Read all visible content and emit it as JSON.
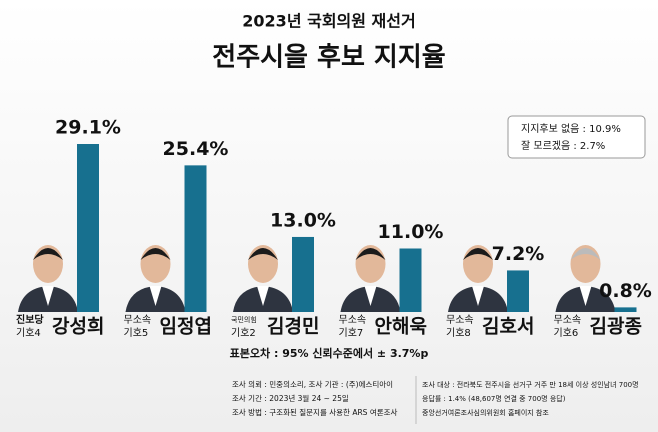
{
  "chart_data": {
    "type": "bar",
    "title": "2023년 국회의원 재선거",
    "subtitle": "전주시을 후보 지지율",
    "categories": [
      "강성희",
      "임정엽",
      "김경민",
      "안해욱",
      "김호서",
      "김광종"
    ],
    "parties": [
      "진보당",
      "무소속",
      "국민의힘",
      "무소속",
      "무소속",
      "무소속"
    ],
    "party_colors": [
      "#d0202a",
      "#555555",
      "#d0202a",
      "#555555",
      "#555555",
      "#555555"
    ],
    "ballot_numbers": [
      "기호4",
      "기호5",
      "기호2",
      "기호7",
      "기호8",
      "기호6"
    ],
    "values": [
      29.1,
      25.4,
      13.0,
      11.0,
      7.2,
      0.8
    ],
    "value_labels": [
      "29.1%",
      "25.4%",
      "13.0%",
      "11.0%",
      "7.2%",
      "0.8%"
    ],
    "color": "#17708f",
    "notes": [
      "지지후보 없음 : 10.9%",
      "잘 모르겠음 : 2.7%"
    ],
    "margin_of_error": "표본오차 : 95% 신뢰수준에서 ± 3.7%p",
    "survey_left": [
      "조사 의뢰 : 민중의소리,  조사 기관 : (주)에스티아이",
      "조사 기간 : 2023년 3월 24 ~ 25일",
      "조사 방법 : 구조화된 질문지를 사용한 ARS 여론조사"
    ],
    "survey_right": [
      "조사 대상 : 전라북도 전주시을 선거구 거주 만 18세 이상 성인남녀 700명",
      "응답률 : 1.4% (48,607명 연결 중 700명 응답)",
      "중앙선거여론조사심의위원회 홈페이지 참조"
    ]
  }
}
